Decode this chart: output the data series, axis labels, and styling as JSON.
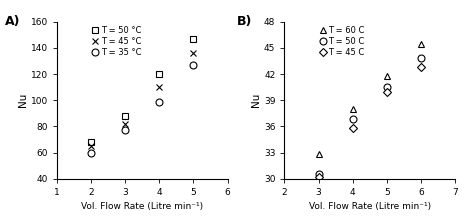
{
  "A": {
    "panel_label": "A)",
    "xlabel": "Vol. Flow Rate (Litre min⁻¹)",
    "ylabel": "Nu",
    "xlim": [
      1,
      6
    ],
    "ylim": [
      40,
      160
    ],
    "yticks": [
      40,
      60,
      80,
      100,
      120,
      140,
      160
    ],
    "xticks": [
      1,
      2,
      3,
      4,
      5,
      6
    ],
    "series": [
      {
        "label": "T = 50 °C",
        "marker": "s",
        "x": [
          2,
          3,
          4,
          5
        ],
        "y": [
          68,
          88,
          120,
          147
        ],
        "color": "black",
        "facecolor": "white",
        "markersize": 5
      },
      {
        "label": "T = 45 °C",
        "marker": "x",
        "x": [
          2,
          3,
          4,
          5
        ],
        "y": [
          65,
          82,
          110,
          136
        ],
        "color": "black",
        "facecolor": "black",
        "markersize": 5
      },
      {
        "label": "T = 35 °C",
        "marker": "o",
        "x": [
          2,
          3,
          4,
          5
        ],
        "y": [
          60,
          77,
          99,
          127
        ],
        "color": "black",
        "facecolor": "white",
        "markersize": 5
      }
    ]
  },
  "B": {
    "panel_label": "B)",
    "xlabel": "Vol. Flow Rate (Litre min⁻¹)",
    "ylabel": "Nu",
    "xlim": [
      2,
      7
    ],
    "ylim": [
      30,
      48
    ],
    "yticks": [
      30,
      33,
      36,
      39,
      42,
      45,
      48
    ],
    "xticks": [
      2,
      3,
      4,
      5,
      6,
      7
    ],
    "series": [
      {
        "label": "T = 60 C",
        "marker": "^",
        "x": [
          3,
          4,
          5,
          6
        ],
        "y": [
          32.8,
          38.0,
          41.8,
          45.5
        ],
        "color": "black",
        "facecolor": "white",
        "markersize": 5
      },
      {
        "label": "T = 50 C",
        "marker": "o",
        "x": [
          3,
          4,
          5,
          6
        ],
        "y": [
          30.5,
          36.8,
          40.5,
          43.8
        ],
        "color": "black",
        "facecolor": "white",
        "markersize": 5
      },
      {
        "label": "T = 45 C",
        "marker": "D",
        "x": [
          3,
          4,
          5,
          6
        ],
        "y": [
          30.2,
          35.8,
          40.0,
          42.8
        ],
        "color": "black",
        "facecolor": "white",
        "markersize": 4
      }
    ]
  },
  "background_color": "#ffffff",
  "font_size": 6.5,
  "label_fontsize": 9
}
